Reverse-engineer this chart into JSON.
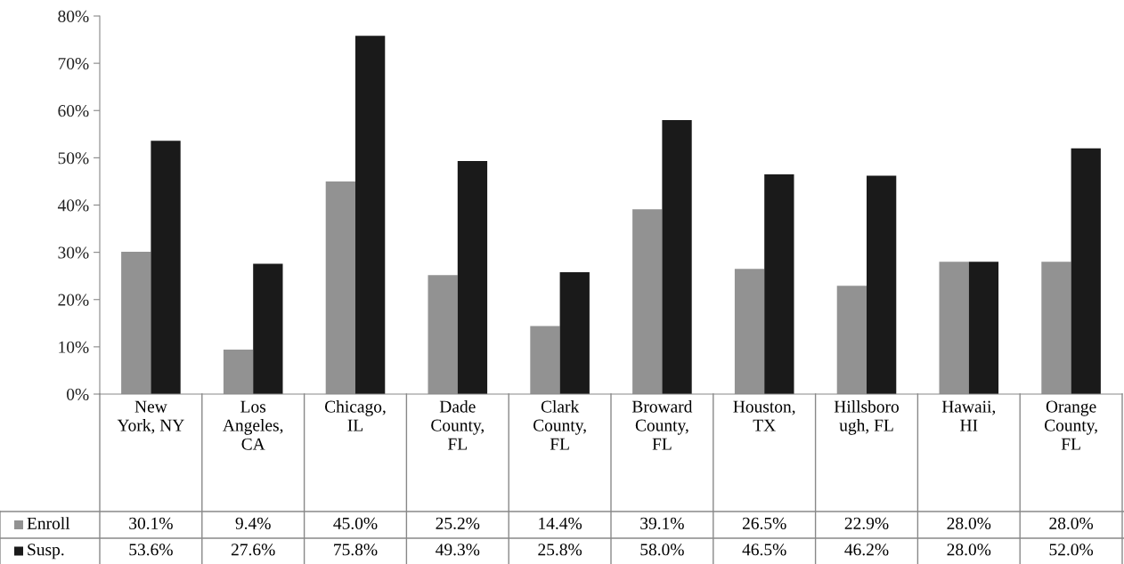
{
  "chart_data": {
    "type": "bar",
    "categories": [
      "New\nYork, NY",
      "Los\nAngeles,\nCA",
      "Chicago,\nIL",
      "Dade\nCounty,\nFL",
      "Clark\nCounty,\nFL",
      "Broward\nCounty,\nFL",
      "Houston,\nTX",
      "Hillsboro\nugh, FL",
      "Hawaii,\nHI",
      "Orange\nCounty,\nFL"
    ],
    "series": [
      {
        "name": "Enroll",
        "color": "#929292",
        "values": [
          30.1,
          9.4,
          45.0,
          25.2,
          14.4,
          39.1,
          26.5,
          22.9,
          28.0,
          28.0
        ],
        "value_labels": [
          "30.1%",
          "9.4%",
          "45.0%",
          "25.2%",
          "14.4%",
          "39.1%",
          "26.5%",
          "22.9%",
          "28.0%",
          "28.0%"
        ]
      },
      {
        "name": "Susp.",
        "color": "#1a1a1a",
        "values": [
          53.6,
          27.6,
          75.8,
          49.3,
          25.8,
          58.0,
          46.5,
          46.2,
          28.0,
          52.0
        ],
        "value_labels": [
          "53.6%",
          "27.6%",
          "75.8%",
          "49.3%",
          "25.8%",
          "58.0%",
          "46.5%",
          "46.2%",
          "28.0%",
          "52.0%"
        ]
      }
    ],
    "ylim": [
      0,
      80
    ],
    "yticks": [
      {
        "value": 0,
        "label": "0%"
      },
      {
        "value": 10,
        "label": "10%"
      },
      {
        "value": 20,
        "label": "20%"
      },
      {
        "value": 30,
        "label": "30%"
      },
      {
        "value": 40,
        "label": "40%"
      },
      {
        "value": 50,
        "label": "50%"
      },
      {
        "value": 60,
        "label": "60%"
      },
      {
        "value": 70,
        "label": "70%"
      },
      {
        "value": 80,
        "label": "80%"
      }
    ],
    "grid": false,
    "legend": "bottom left"
  }
}
